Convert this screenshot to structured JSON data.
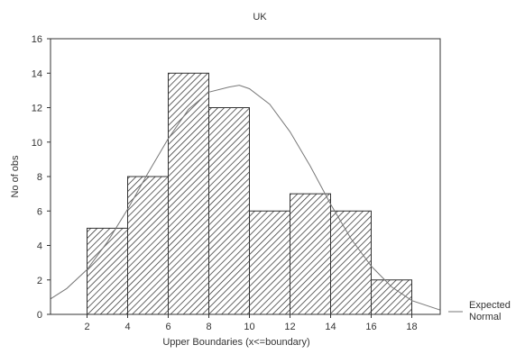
{
  "chart_data": {
    "type": "bar",
    "title": "UK",
    "xlabel": "Upper Boundaries (x<=boundary)",
    "ylabel": "No of obs",
    "x_ticks": [
      "2",
      "4",
      "6",
      "8",
      "10",
      "12",
      "14",
      "16",
      "18"
    ],
    "y_ticks": [
      "0",
      "2",
      "4",
      "6",
      "8",
      "10",
      "12",
      "14",
      "16"
    ],
    "xlim": [
      0.2,
      19.4
    ],
    "ylim": [
      0,
      16
    ],
    "bins": [
      {
        "from": 2,
        "to": 4,
        "value": 5
      },
      {
        "from": 4,
        "to": 6,
        "value": 8
      },
      {
        "from": 6,
        "to": 8,
        "value": 14
      },
      {
        "from": 8,
        "to": 10,
        "value": 12
      },
      {
        "from": 10,
        "to": 12,
        "value": 6
      },
      {
        "from": 12,
        "to": 14,
        "value": 7
      },
      {
        "from": 14,
        "to": 16,
        "value": 6
      },
      {
        "from": 16,
        "to": 18,
        "value": 2
      }
    ],
    "expected_normal": {
      "name": "Expected\nNormal",
      "points": [
        [
          0.2,
          0.9
        ],
        [
          1,
          1.5
        ],
        [
          2,
          2.6
        ],
        [
          3,
          4.2
        ],
        [
          4,
          6.1
        ],
        [
          5,
          8.2
        ],
        [
          6,
          10.2
        ],
        [
          7,
          11.9
        ],
        [
          8,
          12.9
        ],
        [
          9,
          13.2
        ],
        [
          9.5,
          13.3
        ],
        [
          10,
          13.1
        ],
        [
          11,
          12.2
        ],
        [
          12,
          10.6
        ],
        [
          13,
          8.6
        ],
        [
          14,
          6.4
        ],
        [
          15,
          4.4
        ],
        [
          16,
          2.8
        ],
        [
          17,
          1.6
        ],
        [
          18,
          0.8
        ],
        [
          19.4,
          0.25
        ]
      ]
    },
    "legend": {
      "position": "right"
    },
    "grid": false,
    "colors": {
      "bar_fill": "#ffffff",
      "hatch": "#333333",
      "curve": "#777777",
      "axis": "#333333"
    }
  }
}
